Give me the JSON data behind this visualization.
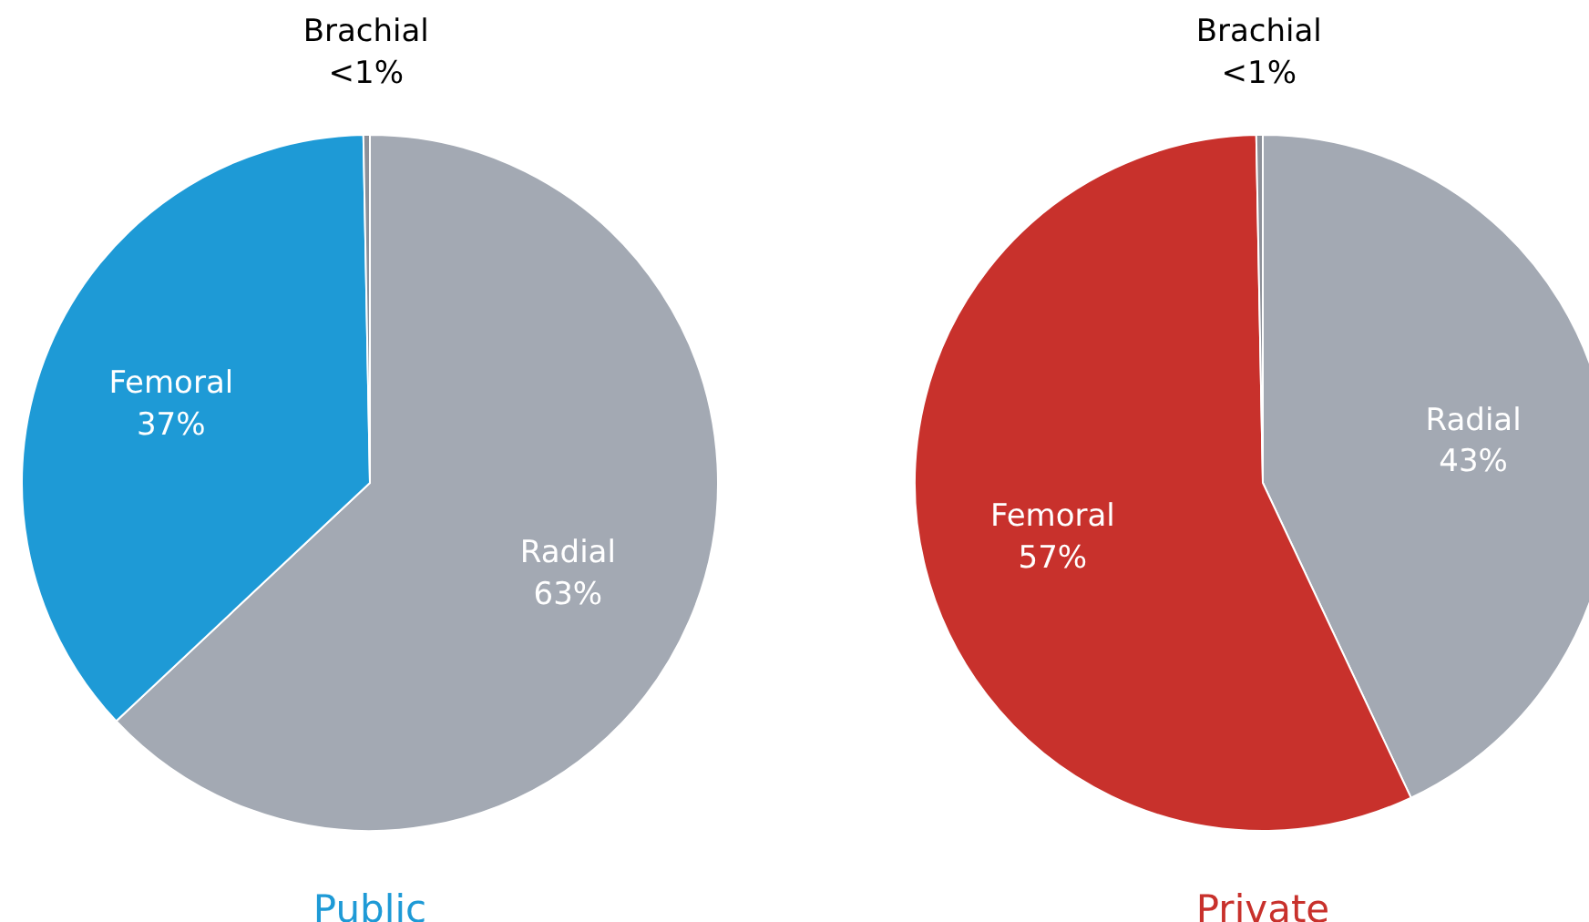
{
  "chart_data": [
    {
      "type": "pie",
      "title": "Public",
      "categories": [
        "Radial",
        "Femoral",
        "Brachial"
      ],
      "values": [
        63,
        36.7,
        0.3
      ],
      "value_labels": [
        "63%",
        "37%",
        "<1%"
      ],
      "colors": [
        "#a3a9b3",
        "#1e9ad6",
        "#8c9099"
      ]
    },
    {
      "type": "pie",
      "title": "Private",
      "categories": [
        "Radial",
        "Femoral",
        "Brachial"
      ],
      "values": [
        43,
        56.7,
        0.3
      ],
      "value_labels": [
        "43%",
        "57%",
        "<1%"
      ],
      "colors": [
        "#a3a9b3",
        "#c8312c",
        "#8c9099"
      ]
    }
  ]
}
